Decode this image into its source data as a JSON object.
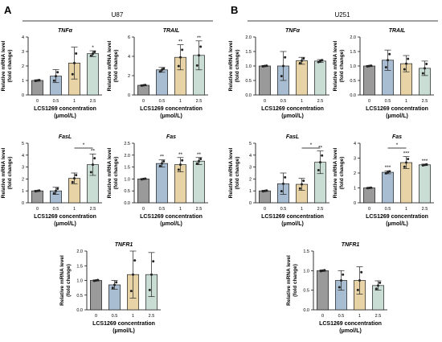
{
  "panels": [
    {
      "letter": "A",
      "cell_line": "U87"
    },
    {
      "letter": "B",
      "cell_line": "U251"
    }
  ],
  "shared": {
    "ylabel_line1": "Relative mRNA level",
    "ylabel_line2": "(fold change)",
    "xlabel_line1": "LCS1269 concentration",
    "xlabel_line2": "(μmol/L)",
    "categories": [
      "0",
      "0.5",
      "1",
      "2.5"
    ],
    "bar_colors": [
      "#9a9a9a",
      "#a8bdd1",
      "#e7d3a6",
      "#c9ddd5"
    ]
  },
  "chart_data": [
    {
      "type": "bar",
      "panel": "A",
      "title": "TNFα",
      "categories": [
        "0",
        "0.5",
        "1",
        "2.5"
      ],
      "values": [
        1.0,
        1.3,
        2.2,
        2.85
      ],
      "errors": [
        0.05,
        0.45,
        1.1,
        0.2
      ],
      "ylim": [
        0,
        4
      ],
      "yticks": [
        0,
        1,
        2,
        3,
        4
      ],
      "sig": [
        "",
        "",
        "",
        "*"
      ],
      "bracket": null
    },
    {
      "type": "bar",
      "panel": "A",
      "title": "TRAIL",
      "categories": [
        "0",
        "0.5",
        "1",
        "2.5"
      ],
      "values": [
        1.0,
        2.6,
        3.9,
        4.1
      ],
      "errors": [
        0.05,
        0.25,
        1.3,
        1.5
      ],
      "ylim": [
        0,
        6
      ],
      "yticks": [
        0,
        2,
        4,
        6
      ],
      "sig": [
        "",
        "",
        "**",
        "**"
      ],
      "bracket": null
    },
    {
      "type": "bar",
      "panel": "B",
      "title": "TNFα",
      "categories": [
        "0",
        "0.5",
        "1",
        "2.5"
      ],
      "values": [
        1.0,
        1.0,
        1.18,
        1.17
      ],
      "errors": [
        0.02,
        0.5,
        0.12,
        0.05
      ],
      "ylim": [
        0,
        2
      ],
      "yticks": [
        0.0,
        0.5,
        1.0,
        1.5,
        2.0
      ],
      "sig": [
        "",
        "",
        "",
        ""
      ],
      "bracket": null
    },
    {
      "type": "bar",
      "panel": "B",
      "title": "TRAIL",
      "categories": [
        "0",
        "0.5",
        "1",
        "2.5"
      ],
      "values": [
        1.0,
        1.2,
        1.08,
        0.92
      ],
      "errors": [
        0.02,
        0.35,
        0.28,
        0.25
      ],
      "ylim": [
        0,
        2
      ],
      "yticks": [
        0.0,
        0.5,
        1.0,
        1.5,
        2.0
      ],
      "sig": [
        "",
        "",
        "",
        ""
      ],
      "bracket": null
    },
    {
      "type": "bar",
      "panel": "A",
      "title": "FasL",
      "categories": [
        "0",
        "0.5",
        "1",
        "2.5"
      ],
      "values": [
        1.0,
        1.0,
        2.05,
        3.2
      ],
      "errors": [
        0.05,
        0.3,
        0.45,
        0.9
      ],
      "ylim": [
        0,
        5
      ],
      "yticks": [
        0,
        1,
        2,
        3,
        4,
        5
      ],
      "sig": [
        "",
        "",
        "",
        "**"
      ],
      "bracket": {
        "from": 2,
        "to": 3,
        "label": "*"
      }
    },
    {
      "type": "bar",
      "panel": "A",
      "title": "Fas",
      "categories": [
        "0",
        "0.5",
        "1",
        "2.5"
      ],
      "values": [
        1.0,
        1.65,
        1.6,
        1.75
      ],
      "errors": [
        0.02,
        0.15,
        0.3,
        0.15
      ],
      "ylim": [
        0,
        2.5
      ],
      "yticks": [
        0.0,
        0.5,
        1.0,
        1.5,
        2.0,
        2.5
      ],
      "sig": [
        "",
        "**",
        "**",
        "**"
      ],
      "bracket": null
    },
    {
      "type": "bar",
      "panel": "B",
      "title": "FasL",
      "categories": [
        "0",
        "0.5",
        "1",
        "2.5"
      ],
      "values": [
        1.0,
        1.6,
        1.55,
        3.4
      ],
      "errors": [
        0.05,
        0.9,
        0.5,
        0.95
      ],
      "ylim": [
        0,
        5
      ],
      "yticks": [
        0,
        1,
        2,
        3,
        4,
        5
      ],
      "sig": [
        "",
        "",
        "",
        "**"
      ],
      "bracket": {
        "from": 2,
        "to": 3,
        "label": "*"
      }
    },
    {
      "type": "bar",
      "panel": "B",
      "title": "Fas",
      "categories": [
        "0",
        "0.5",
        "1",
        "2.5"
      ],
      "values": [
        1.0,
        2.05,
        2.7,
        2.55
      ],
      "errors": [
        0.02,
        0.1,
        0.4,
        0.05
      ],
      "ylim": [
        0,
        4
      ],
      "yticks": [
        0,
        1,
        2,
        3,
        4
      ],
      "sig": [
        "",
        "***",
        "***",
        "***"
      ],
      "bracket": {
        "from": 1,
        "to": 2,
        "label": "*"
      }
    },
    {
      "type": "bar",
      "panel": "A",
      "title": "TNFR1",
      "categories": [
        "0",
        "0.5",
        "1",
        "2.5"
      ],
      "values": [
        1.0,
        0.85,
        1.2,
        1.2
      ],
      "errors": [
        0.02,
        0.15,
        0.8,
        0.75
      ],
      "ylim": [
        0,
        2
      ],
      "yticks": [
        0.0,
        0.5,
        1.0,
        1.5,
        2.0
      ],
      "sig": [
        "",
        "",
        "",
        ""
      ],
      "bracket": null
    },
    {
      "type": "bar",
      "panel": "B",
      "title": "TNFR1",
      "categories": [
        "0",
        "0.5",
        "1",
        "2.5"
      ],
      "values": [
        1.0,
        0.75,
        0.75,
        0.62
      ],
      "errors": [
        0.02,
        0.25,
        0.35,
        0.12
      ],
      "ylim": [
        0,
        1.5
      ],
      "yticks": [
        0.0,
        0.5,
        1.0,
        1.5
      ],
      "sig": [
        "",
        "",
        "",
        ""
      ],
      "bracket": null
    }
  ]
}
